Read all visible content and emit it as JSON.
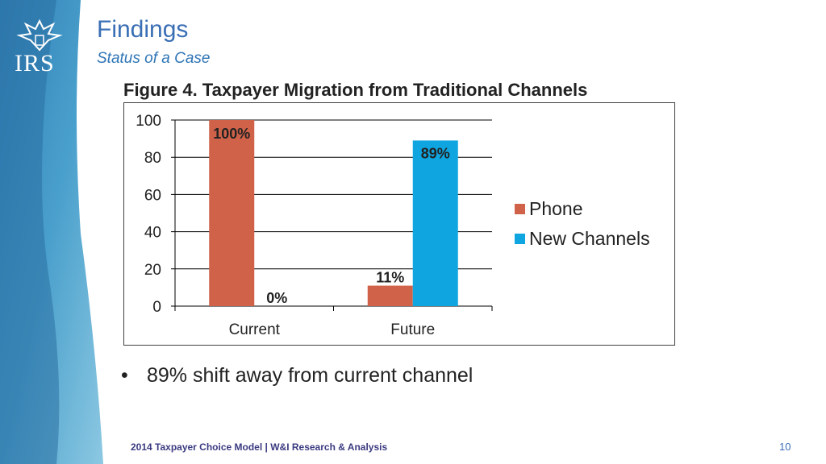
{
  "slide": {
    "title": "Findings",
    "subtitle": "Status of a Case",
    "figure_title": "Figure 4. Taxpayer Migration from Traditional Channels",
    "bullet": "89% shift away from current channel",
    "footer": "2014 Taxpayer Choice Model | W&I Research & Analysis",
    "page_number": "10",
    "logo_text": "IRS"
  },
  "colors": {
    "phone": "#d06249",
    "new_channels": "#0ea5e0",
    "title": "#3a6fb5",
    "band": "#3f8fc0"
  },
  "chart_data": {
    "type": "bar",
    "categories": [
      "Current",
      "Future"
    ],
    "series": [
      {
        "name": "Phone",
        "values": [
          100,
          11
        ],
        "labels": [
          "100%",
          "11%"
        ],
        "color": "#d06249"
      },
      {
        "name": "New Channels",
        "values": [
          0,
          89
        ],
        "labels": [
          "0%",
          "89%"
        ],
        "color": "#0ea5e0"
      }
    ],
    "ylim": [
      0,
      100
    ],
    "yticks": [
      0,
      20,
      40,
      60,
      80,
      100
    ],
    "grid": true,
    "legend": "right"
  }
}
